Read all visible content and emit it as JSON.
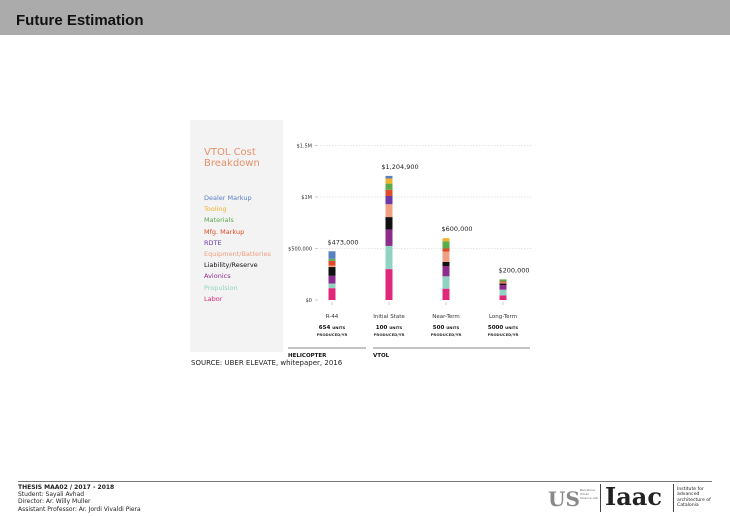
{
  "header": {
    "title": "Future Estimation"
  },
  "chart_data": {
    "type": "bar",
    "stacked": true,
    "title": "VTOL Cost Breakdown",
    "ylim": [
      0,
      1500000
    ],
    "yticks": [
      "$0",
      "$500,000",
      "$1M",
      "$1.5M"
    ],
    "grid": true,
    "legend_position": "left",
    "categories": [
      "R-44",
      "Initial State",
      "Near-Term",
      "Long-Term"
    ],
    "units": [
      "654",
      "100",
      "500",
      "5000"
    ],
    "units_label": "UNITS",
    "produced_label": "PRODUCED/YR",
    "totals": [
      "$473,000",
      "$1,204,900",
      "$600,000",
      "$200,000"
    ],
    "groups": [
      {
        "label": "HELICOPTER"
      },
      {
        "label": "VTOL"
      }
    ],
    "series": [
      {
        "name": "Labor",
        "color": "#e0287a",
        "values": [
          115000,
          300000,
          110000,
          45000
        ]
      },
      {
        "name": "Propulsion",
        "color": "#8fd3c2",
        "values": [
          45000,
          225000,
          120000,
          55000
        ]
      },
      {
        "name": "Avionics",
        "color": "#8e2c8e",
        "values": [
          75000,
          160000,
          100000,
          45000
        ]
      },
      {
        "name": "Liability/Reserve",
        "color": "#111111",
        "values": [
          85000,
          120000,
          40000,
          15000
        ]
      },
      {
        "name": "Equipment/Batteries",
        "color": "#f0a080",
        "values": [
          15000,
          125000,
          100000,
          10000
        ]
      },
      {
        "name": "RDTE",
        "color": "#6a3aa8",
        "values": [
          0,
          80000,
          0,
          0
        ]
      },
      {
        "name": "Mfg. Markup",
        "color": "#e04a2a",
        "values": [
          45000,
          60000,
          30000,
          10000
        ]
      },
      {
        "name": "Materials",
        "color": "#5aab4a",
        "values": [
          20000,
          60000,
          70000,
          20000
        ]
      },
      {
        "name": "Tooling",
        "color": "#f0b030",
        "values": [
          0,
          50000,
          30000,
          0
        ]
      },
      {
        "name": "Dealer Markup",
        "color": "#5b80c0",
        "values": [
          73000,
          24900,
          0,
          0
        ]
      }
    ]
  },
  "source": "SOURCE: UBER ELEVATE, whitepaper, 2016",
  "footer": {
    "line1": "THESIS MAA02 / 2017 - 2018",
    "line2": "Student: Sayali Avhad",
    "line3": "Director: Ar. Willy Muller",
    "line4": "Assistant Professor: Ar. Jordi Vivaldi Piera",
    "logo1_text": "Barcelona Urban Science Lab",
    "logo2_text": "Iaac",
    "logo2_caption": "Institute for advanced architecture of Catalonia"
  }
}
